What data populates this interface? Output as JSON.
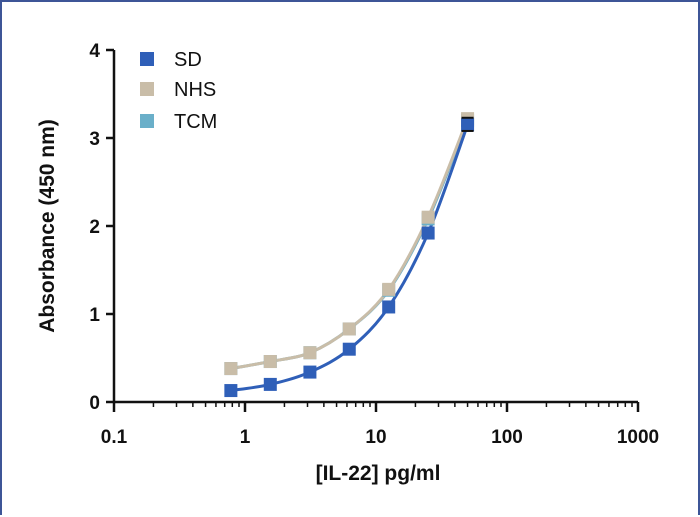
{
  "chart_data": {
    "type": "scatter",
    "xlabel": "[IL-22] pg/ml",
    "ylabel": "Absorbance (450 nm)",
    "xscale": "log",
    "xlim": [
      0.1,
      1000
    ],
    "ylim": [
      0,
      4
    ],
    "x_ticks": [
      0.1,
      1,
      10,
      100,
      1000
    ],
    "x_tick_labels": [
      "0.1",
      "1",
      "10",
      "100",
      "1000"
    ],
    "y_ticks": [
      0,
      1,
      2,
      3,
      4
    ],
    "y_tick_labels": [
      "0",
      "1",
      "2",
      "3",
      "4"
    ],
    "legend_position": "top-left",
    "fitted_curves": true,
    "x": [
      0.78,
      1.56,
      3.13,
      6.25,
      12.5,
      25,
      50
    ],
    "series": [
      {
        "name": "SD",
        "color": "#2f5fb8",
        "values": [
          0.13,
          0.2,
          0.34,
          0.6,
          1.08,
          1.92,
          3.15
        ]
      },
      {
        "name": "NHS",
        "color": "#c9bda8",
        "values": [
          0.38,
          0.46,
          0.56,
          0.83,
          1.28,
          2.1,
          3.22
        ]
      },
      {
        "name": "TCM",
        "color": "#6aafc9",
        "values": [
          0.38,
          0.46,
          0.56,
          0.83,
          1.27,
          2.08,
          3.2
        ]
      }
    ]
  }
}
